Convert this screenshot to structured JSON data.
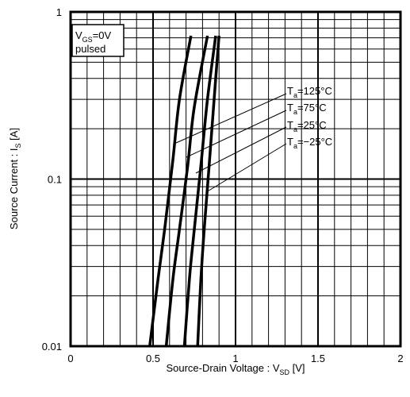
{
  "chart_data": {
    "type": "line",
    "x_scale": "linear",
    "y_scale": "log",
    "xlim": [
      0,
      2
    ],
    "ylim": [
      0.01,
      1
    ],
    "grid": true,
    "xlabel": {
      "main": "Source-Drain Voltage :  V",
      "sub": "SD",
      "unit": " [V]"
    },
    "ylabel": {
      "main": "Source Current :  I",
      "sub": "S",
      "unit": " [A]"
    },
    "x_ticks": [
      {
        "value": 0,
        "label": "0"
      },
      {
        "value": 0.5,
        "label": "0.5"
      },
      {
        "value": 1,
        "label": "1"
      },
      {
        "value": 1.5,
        "label": "1.5"
      },
      {
        "value": 2,
        "label": "2"
      }
    ],
    "y_ticks": [
      {
        "value": 0.01,
        "label": "0.01"
      },
      {
        "value": 0.1,
        "label": "0.1"
      },
      {
        "value": 1,
        "label": "1"
      }
    ],
    "conditions": {
      "line1": {
        "pre": "V",
        "sub": "GS",
        "post": "=0V"
      },
      "line2": "pulsed"
    },
    "series": [
      {
        "name": {
          "pre": "T",
          "sub": "a",
          "post": "=125°C"
        },
        "points": [
          [
            0.48,
            0.01
          ],
          [
            0.53,
            0.025
          ],
          [
            0.57,
            0.05
          ],
          [
            0.62,
            0.13
          ],
          [
            0.66,
            0.3
          ],
          [
            0.73,
            0.72
          ]
        ]
      },
      {
        "name": {
          "pre": "T",
          "sub": "a",
          "post": "=75°C"
        },
        "points": [
          [
            0.58,
            0.01
          ],
          [
            0.62,
            0.025
          ],
          [
            0.66,
            0.05
          ],
          [
            0.71,
            0.12
          ],
          [
            0.75,
            0.27
          ],
          [
            0.83,
            0.72
          ]
        ]
      },
      {
        "name": {
          "pre": "T",
          "sub": "a",
          "post": "=25°C"
        },
        "points": [
          [
            0.69,
            0.01
          ],
          [
            0.72,
            0.025
          ],
          [
            0.75,
            0.05
          ],
          [
            0.79,
            0.12
          ],
          [
            0.83,
            0.3
          ],
          [
            0.88,
            0.72
          ]
        ]
      },
      {
        "name": {
          "pre": "T",
          "sub": "a",
          "post": "=−25°C"
        },
        "points": [
          [
            0.77,
            0.01
          ],
          [
            0.79,
            0.025
          ],
          [
            0.81,
            0.05
          ],
          [
            0.84,
            0.12
          ],
          [
            0.87,
            0.3
          ],
          [
            0.9,
            0.72
          ]
        ]
      }
    ]
  }
}
